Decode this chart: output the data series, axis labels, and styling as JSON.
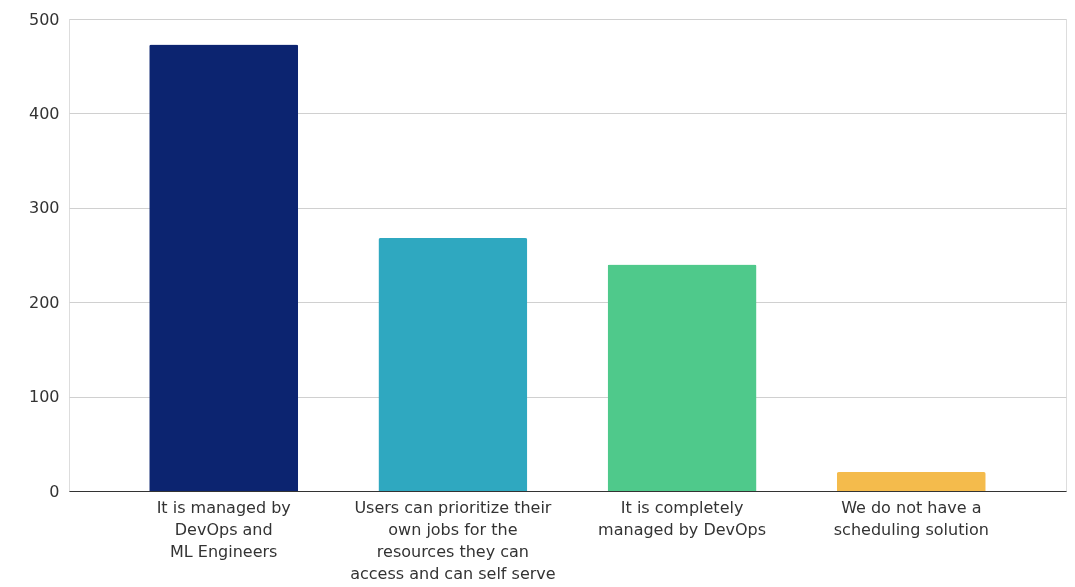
{
  "chart_data": {
    "type": "bar",
    "categories": [
      "It is managed by\nDevOps and\nML Engineers",
      "Users can prioritize their\nown jobs for the\nresources they can\naccess and can self serve",
      "It is completely\nmanaged by DevOps",
      "We do not have a\nscheduling solution"
    ],
    "values": [
      473,
      268,
      240,
      20
    ],
    "colors": [
      "#0c2470",
      "#2fa8c0",
      "#4fc98b",
      "#f4bb4c"
    ],
    "ylim": [
      0,
      500
    ],
    "yticks": [
      0,
      100,
      200,
      300,
      400,
      500
    ],
    "grid": "y"
  }
}
